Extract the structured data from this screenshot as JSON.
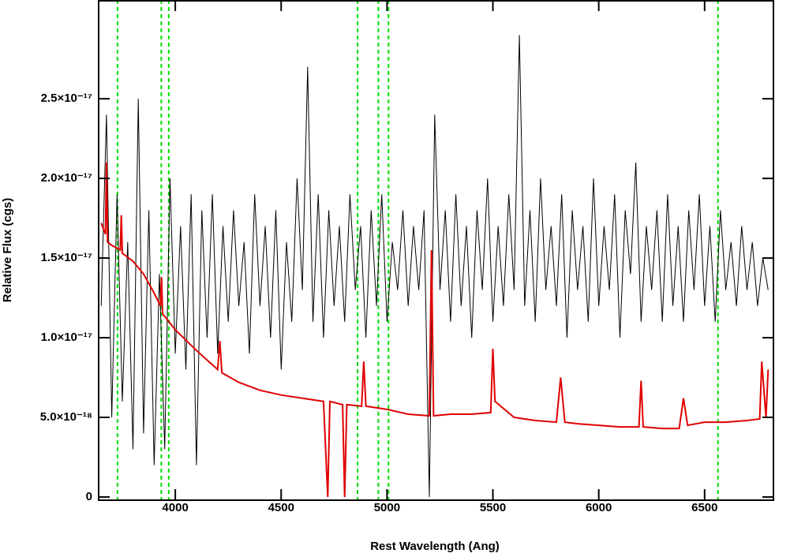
{
  "chart_data": {
    "type": "line",
    "xlabel": "Rest Wavelength (Ang)",
    "ylabel": "Relative Flux (cgs)",
    "xlim": [
      3638,
      6825
    ],
    "ylim": [
      -2e-19,
      3.12e-17
    ],
    "xticks": [
      4000,
      4500,
      5000,
      5500,
      6000,
      6500
    ],
    "yticks": [
      0,
      {
        "value": 5e-18,
        "label": "5.0×10⁻¹⁸"
      },
      {
        "value": 1e-17,
        "label": "1.0×10⁻¹⁷"
      },
      {
        "value": 1.5e-17,
        "label": "1.5×10⁻¹⁷"
      },
      {
        "value": 2e-17,
        "label": "2.0×10⁻¹⁷"
      },
      {
        "value": 2.5e-17,
        "label": "2.5×10⁻¹⁷"
      }
    ],
    "vlines": {
      "color": "#00dd00",
      "x": [
        3727,
        3934,
        3969,
        4861,
        4959,
        5007,
        6563
      ]
    },
    "series": [
      {
        "color": "#000000",
        "x": [
          3650,
          3675,
          3700,
          3725,
          3750,
          3775,
          3800,
          3825,
          3850,
          3875,
          3900,
          3925,
          3950,
          3975,
          4000,
          4025,
          4050,
          4075,
          4100,
          4125,
          4150,
          4175,
          4200,
          4225,
          4250,
          4275,
          4300,
          4325,
          4350,
          4375,
          4400,
          4425,
          4450,
          4475,
          4500,
          4525,
          4550,
          4575,
          4600,
          4625,
          4650,
          4675,
          4700,
          4725,
          4750,
          4775,
          4800,
          4825,
          4850,
          4875,
          4900,
          4925,
          4950,
          4975,
          5000,
          5025,
          5050,
          5075,
          5100,
          5125,
          5150,
          5175,
          5200,
          5225,
          5250,
          5275,
          5300,
          5325,
          5350,
          5375,
          5400,
          5425,
          5450,
          5475,
          5500,
          5525,
          5550,
          5575,
          5600,
          5625,
          5650,
          5675,
          5700,
          5725,
          5750,
          5775,
          5800,
          5825,
          5850,
          5875,
          5900,
          5925,
          5950,
          5975,
          6000,
          6025,
          6050,
          6075,
          6100,
          6125,
          6150,
          6175,
          6200,
          6225,
          6250,
          6275,
          6300,
          6325,
          6350,
          6375,
          6400,
          6425,
          6450,
          6475,
          6500,
          6525,
          6550,
          6575,
          6600,
          6625,
          6650,
          6675,
          6700,
          6725,
          6750,
          6775,
          6800
        ],
        "values": [
          1.2e-17,
          2.4e-17,
          5e-18,
          1.9e-17,
          6e-18,
          1.6e-17,
          3e-18,
          2.5e-17,
          4e-18,
          1.8e-17,
          2e-18,
          1.4e-17,
          3e-18,
          2e-17,
          9e-18,
          1.7e-17,
          8e-18,
          1.9e-17,
          2e-18,
          1.8e-17,
          1e-17,
          1.9e-17,
          9e-18,
          1.7e-17,
          1.1e-17,
          1.8e-17,
          1.2e-17,
          1.6e-17,
          9e-18,
          1.9e-17,
          1.2e-17,
          1.7e-17,
          1e-17,
          1.8e-17,
          8e-18,
          1.6e-17,
          1.1e-17,
          2e-17,
          1.3e-17,
          2.7e-17,
          1.1e-17,
          1.9e-17,
          1e-17,
          1.8e-17,
          1.2e-17,
          1.7e-17,
          1.1e-17,
          1.9e-17,
          1.3e-17,
          1.7e-17,
          1e-17,
          1.8e-17,
          1.2e-17,
          1.9e-17,
          1.1e-17,
          1.6e-17,
          1.3e-17,
          1.8e-17,
          1.2e-17,
          1.7e-17,
          1.3e-17,
          1.8e-17,
          0,
          2.4e-17,
          1.3e-17,
          1.8e-17,
          1.1e-17,
          1.9e-17,
          1.2e-17,
          1.7e-17,
          1e-17,
          1.8e-17,
          1.3e-17,
          2e-17,
          1.1e-17,
          1.7e-17,
          1.2e-17,
          1.9e-17,
          1.3e-17,
          2.9e-17,
          1.2e-17,
          1.8e-17,
          1.1e-17,
          2e-17,
          1.3e-17,
          1.7e-17,
          1.2e-17,
          1.9e-17,
          1e-17,
          1.8e-17,
          1.3e-17,
          1.7e-17,
          1.1e-17,
          2e-17,
          1.2e-17,
          1.7e-17,
          1.3e-17,
          1.9e-17,
          1e-17,
          1.8e-17,
          1.4e-17,
          2.1e-17,
          1.1e-17,
          1.7e-17,
          1.3e-17,
          1.8e-17,
          1.1e-17,
          1.9e-17,
          1.2e-17,
          1.7e-17,
          1.1e-17,
          1.8e-17,
          1.3e-17,
          1.9e-17,
          1.2e-17,
          1.7e-17,
          1.1e-17,
          1.8e-17,
          1.3e-17,
          1.6e-17,
          1.2e-17,
          1.7e-17,
          1.3e-17,
          1.6e-17,
          1.2e-17,
          1.5e-17,
          1.3e-17
        ]
      },
      {
        "color": "#e00000",
        "x": [
          3650,
          3670,
          3675,
          3680,
          3700,
          3740,
          3745,
          3750,
          3800,
          3850,
          3900,
          3930,
          3935,
          3940,
          4000,
          4100,
          4200,
          4210,
          4220,
          4300,
          4400,
          4500,
          4600,
          4700,
          4720,
          4730,
          4790,
          4800,
          4810,
          4880,
          4890,
          4900,
          5000,
          5100,
          5200,
          5210,
          5220,
          5300,
          5400,
          5490,
          5500,
          5510,
          5600,
          5700,
          5800,
          5820,
          5840,
          5900,
          6000,
          6100,
          6190,
          6200,
          6210,
          6300,
          6380,
          6400,
          6420,
          6500,
          6600,
          6700,
          6760,
          6770,
          6790,
          6800
        ],
        "values": [
          1.72e-17,
          1.65e-17,
          2.1e-17,
          1.6e-17,
          1.58e-17,
          1.55e-17,
          1.77e-17,
          1.53e-17,
          1.48e-17,
          1.4e-17,
          1.28e-17,
          1.2e-17,
          1.38e-17,
          1.15e-17,
          1.05e-17,
          9.2e-18,
          8e-18,
          9.8e-18,
          7.8e-18,
          7.2e-18,
          6.7e-18,
          6.4e-18,
          6.2e-18,
          6e-18,
          0,
          6e-18,
          5.8e-18,
          0,
          5.8e-18,
          5.7e-18,
          8.5e-18,
          5.7e-18,
          5.5e-18,
          5.2e-18,
          5.1e-18,
          1.55e-17,
          5.1e-18,
          5.2e-18,
          5.2e-18,
          5.3e-18,
          9.3e-18,
          6e-18,
          5e-18,
          4.8e-18,
          4.7e-18,
          7.5e-18,
          4.7e-18,
          4.6e-18,
          4.5e-18,
          4.4e-18,
          4.4e-18,
          7.3e-18,
          4.4e-18,
          4.3e-18,
          4.3e-18,
          6.2e-18,
          4.5e-18,
          4.7e-18,
          4.7e-18,
          4.8e-18,
          4.9e-18,
          8.5e-18,
          5e-18,
          8e-18
        ]
      }
    ]
  }
}
